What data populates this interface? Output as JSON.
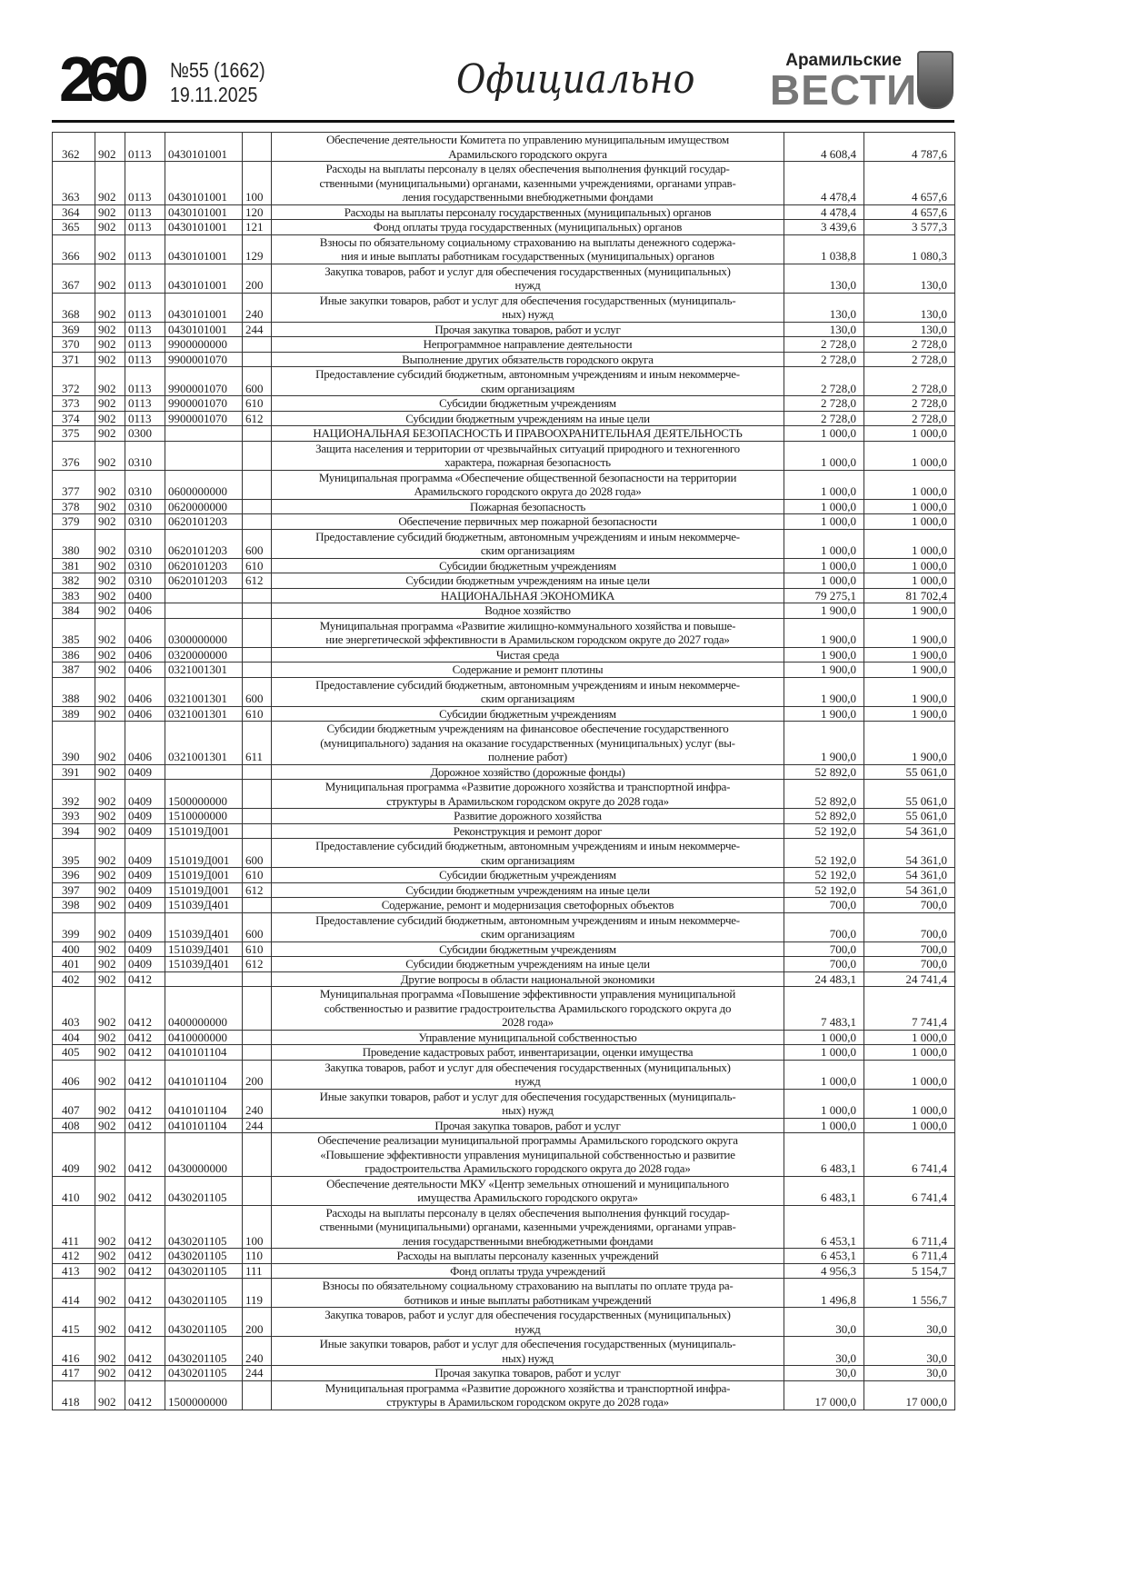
{
  "header": {
    "logo": "260",
    "issue": "№55 (1662)",
    "date": "19.11.2025",
    "section": "Официально",
    "brand_small": "Арамильские",
    "brand_big": "ВЕСТИ"
  },
  "rows": [
    [
      "362",
      "902",
      "0113",
      "0430101001",
      "",
      "Обеспечение деятельности Комитета по управлению муниципальным имуществом\nАрамильского городского округа",
      "4 608,4",
      "4 787,6"
    ],
    [
      "363",
      "902",
      "0113",
      "0430101001",
      "100",
      "Расходы на выплаты персоналу в целях обеспечения выполнения функций государ-\nственными (муниципальными) органами, казенными учреждениями, органами управ-\nления государственными внебюджетными фондами",
      "4 478,4",
      "4 657,6"
    ],
    [
      "364",
      "902",
      "0113",
      "0430101001",
      "120",
      "Расходы на выплаты персоналу государственных (муниципальных) органов",
      "4 478,4",
      "4 657,6"
    ],
    [
      "365",
      "902",
      "0113",
      "0430101001",
      "121",
      "Фонд оплаты труда государственных (муниципальных) органов",
      "3 439,6",
      "3 577,3"
    ],
    [
      "366",
      "902",
      "0113",
      "0430101001",
      "129",
      "Взносы по обязательному социальному страхованию на выплаты денежного содержа-\nния и иные выплаты работникам государственных (муниципальных) органов",
      "1 038,8",
      "1 080,3"
    ],
    [
      "367",
      "902",
      "0113",
      "0430101001",
      "200",
      "Закупка товаров, работ и услуг для обеспечения государственных (муниципальных)\nнужд",
      "130,0",
      "130,0"
    ],
    [
      "368",
      "902",
      "0113",
      "0430101001",
      "240",
      "Иные закупки товаров, работ и услуг для обеспечения государственных (муниципаль-\nных) нужд",
      "130,0",
      "130,0"
    ],
    [
      "369",
      "902",
      "0113",
      "0430101001",
      "244",
      "Прочая закупка товаров, работ и услуг",
      "130,0",
      "130,0"
    ],
    [
      "370",
      "902",
      "0113",
      "9900000000",
      "",
      "Непрограммное направление деятельности",
      "2 728,0",
      "2 728,0"
    ],
    [
      "371",
      "902",
      "0113",
      "9900001070",
      "",
      "Выполнение других обязательств городского округа",
      "2 728,0",
      "2 728,0"
    ],
    [
      "372",
      "902",
      "0113",
      "9900001070",
      "600",
      "Предоставление субсидий бюджетным, автономным учреждениям и иным некоммерче-\nским организациям",
      "2 728,0",
      "2 728,0"
    ],
    [
      "373",
      "902",
      "0113",
      "9900001070",
      "610",
      "Субсидии бюджетным учреждениям",
      "2 728,0",
      "2 728,0"
    ],
    [
      "374",
      "902",
      "0113",
      "9900001070",
      "612",
      "Субсидии бюджетным учреждениям на иные цели",
      "2 728,0",
      "2 728,0"
    ],
    [
      "375",
      "902",
      "0300",
      "",
      "",
      "НАЦИОНАЛЬНАЯ БЕЗОПАСНОСТЬ И ПРАВООХРАНИТЕЛЬНАЯ ДЕЯТЕЛЬНОСТЬ",
      "1 000,0",
      "1 000,0"
    ],
    [
      "376",
      "902",
      "0310",
      "",
      "",
      "Защита населения и территории от чрезвычайных ситуаций природного и техногенного\nхарактера, пожарная безопасность",
      "1 000,0",
      "1 000,0"
    ],
    [
      "377",
      "902",
      "0310",
      "0600000000",
      "",
      "Муниципальная программа «Обеспечение общественной безопасности на территории\nАрамильского городского округа до 2028 года»",
      "1 000,0",
      "1 000,0"
    ],
    [
      "378",
      "902",
      "0310",
      "0620000000",
      "",
      "Пожарная безопасность",
      "1 000,0",
      "1 000,0"
    ],
    [
      "379",
      "902",
      "0310",
      "0620101203",
      "",
      "Обеспечение первичных мер пожарной безопасности",
      "1 000,0",
      "1 000,0"
    ],
    [
      "380",
      "902",
      "0310",
      "0620101203",
      "600",
      "Предоставление субсидий бюджетным, автономным учреждениям и иным некоммерче-\nским организациям",
      "1 000,0",
      "1 000,0"
    ],
    [
      "381",
      "902",
      "0310",
      "0620101203",
      "610",
      "Субсидии бюджетным учреждениям",
      "1 000,0",
      "1 000,0"
    ],
    [
      "382",
      "902",
      "0310",
      "0620101203",
      "612",
      "Субсидии бюджетным учреждениям на иные цели",
      "1 000,0",
      "1 000,0"
    ],
    [
      "383",
      "902",
      "0400",
      "",
      "",
      "НАЦИОНАЛЬНАЯ ЭКОНОМИКА",
      "79 275,1",
      "81 702,4"
    ],
    [
      "384",
      "902",
      "0406",
      "",
      "",
      "Водное хозяйство",
      "1 900,0",
      "1 900,0"
    ],
    [
      "385",
      "902",
      "0406",
      "0300000000",
      "",
      "Муниципальная программа «Развитие жилищно-коммунального хозяйства и повыше-\nние энергетической эффективности в Арамильском городском округе до 2027 года»",
      "1 900,0",
      "1 900,0"
    ],
    [
      "386",
      "902",
      "0406",
      "0320000000",
      "",
      "Чистая среда",
      "1 900,0",
      "1 900,0"
    ],
    [
      "387",
      "902",
      "0406",
      "0321001301",
      "",
      "Содержание и ремонт плотины",
      "1 900,0",
      "1 900,0"
    ],
    [
      "388",
      "902",
      "0406",
      "0321001301",
      "600",
      "Предоставление субсидий бюджетным, автономным учреждениям и иным некоммерче-\nским организациям",
      "1 900,0",
      "1 900,0"
    ],
    [
      "389",
      "902",
      "0406",
      "0321001301",
      "610",
      "Субсидии бюджетным учреждениям",
      "1 900,0",
      "1 900,0"
    ],
    [
      "390",
      "902",
      "0406",
      "0321001301",
      "611",
      "Субсидии бюджетным учреждениям на финансовое обеспечение государственного\n(муниципального) задания на оказание государственных (муниципальных) услуг (вы-\nполнение работ)",
      "1 900,0",
      "1 900,0"
    ],
    [
      "391",
      "902",
      "0409",
      "",
      "",
      "Дорожное хозяйство (дорожные фонды)",
      "52 892,0",
      "55 061,0"
    ],
    [
      "392",
      "902",
      "0409",
      "1500000000",
      "",
      "Муниципальная программа «Развитие дорожного хозяйства и транспортной инфра-\nструктуры в Арамильском городском округе до 2028 года»",
      "52 892,0",
      "55 061,0"
    ],
    [
      "393",
      "902",
      "0409",
      "1510000000",
      "",
      "Развитие дорожного хозяйства",
      "52 892,0",
      "55 061,0"
    ],
    [
      "394",
      "902",
      "0409",
      "151019Д001",
      "",
      "Реконструкция и ремонт дорог",
      "52 192,0",
      "54 361,0"
    ],
    [
      "395",
      "902",
      "0409",
      "151019Д001",
      "600",
      "Предоставление субсидий бюджетным, автономным учреждениям и иным некоммерче-\nским организациям",
      "52 192,0",
      "54 361,0"
    ],
    [
      "396",
      "902",
      "0409",
      "151019Д001",
      "610",
      "Субсидии бюджетным учреждениям",
      "52 192,0",
      "54 361,0"
    ],
    [
      "397",
      "902",
      "0409",
      "151019Д001",
      "612",
      "Субсидии бюджетным учреждениям на иные цели",
      "52 192,0",
      "54 361,0"
    ],
    [
      "398",
      "902",
      "0409",
      "151039Д401",
      "",
      "Содержание, ремонт и модернизация светофорных объектов",
      "700,0",
      "700,0"
    ],
    [
      "399",
      "902",
      "0409",
      "151039Д401",
      "600",
      "Предоставление субсидий бюджетным, автономным учреждениям и иным некоммерче-\nским организациям",
      "700,0",
      "700,0"
    ],
    [
      "400",
      "902",
      "0409",
      "151039Д401",
      "610",
      "Субсидии бюджетным учреждениям",
      "700,0",
      "700,0"
    ],
    [
      "401",
      "902",
      "0409",
      "151039Д401",
      "612",
      "Субсидии бюджетным учреждениям на иные цели",
      "700,0",
      "700,0"
    ],
    [
      "402",
      "902",
      "0412",
      "",
      "",
      "Другие вопросы в области национальной экономики",
      "24 483,1",
      "24 741,4"
    ],
    [
      "403",
      "902",
      "0412",
      "0400000000",
      "",
      "Муниципальная программа «Повышение эффективности управления муниципальной\nсобственностью и развитие градостроительства Арамильского городского округа до\n2028 года»",
      "7 483,1",
      "7 741,4"
    ],
    [
      "404",
      "902",
      "0412",
      "0410000000",
      "",
      "Управление муниципальной собственностью",
      "1 000,0",
      "1 000,0"
    ],
    [
      "405",
      "902",
      "0412",
      "0410101104",
      "",
      "Проведение кадастровых работ, инвентаризации, оценки имущества",
      "1 000,0",
      "1 000,0"
    ],
    [
      "406",
      "902",
      "0412",
      "0410101104",
      "200",
      "Закупка товаров, работ и услуг для обеспечения государственных (муниципальных)\nнужд",
      "1 000,0",
      "1 000,0"
    ],
    [
      "407",
      "902",
      "0412",
      "0410101104",
      "240",
      "Иные закупки товаров, работ и услуг для обеспечения государственных (муниципаль-\nных) нужд",
      "1 000,0",
      "1 000,0"
    ],
    [
      "408",
      "902",
      "0412",
      "0410101104",
      "244",
      "Прочая закупка товаров, работ и услуг",
      "1 000,0",
      "1 000,0"
    ],
    [
      "409",
      "902",
      "0412",
      "0430000000",
      "",
      "Обеспечение реализации муниципальной программы Арамильского городского округа\n«Повышение эффективности управления муниципальной собственностью и развитие\nградостроительства Арамильского городского округа до 2028 года»",
      "6 483,1",
      "6 741,4"
    ],
    [
      "410",
      "902",
      "0412",
      "0430201105",
      "",
      "Обеспечение деятельности МКУ «Центр земельных отношений и муниципального\nимущества Арамильского городского округа»",
      "6 483,1",
      "6 741,4"
    ],
    [
      "411",
      "902",
      "0412",
      "0430201105",
      "100",
      "Расходы на выплаты персоналу в целях обеспечения выполнения функций государ-\nственными (муниципальными) органами, казенными учреждениями, органами управ-\nления государственными внебюджетными фондами",
      "6 453,1",
      "6 711,4"
    ],
    [
      "412",
      "902",
      "0412",
      "0430201105",
      "110",
      "Расходы на выплаты персоналу казенных учреждений",
      "6 453,1",
      "6 711,4"
    ],
    [
      "413",
      "902",
      "0412",
      "0430201105",
      "111",
      "Фонд оплаты труда учреждений",
      "4 956,3",
      "5 154,7"
    ],
    [
      "414",
      "902",
      "0412",
      "0430201105",
      "119",
      "Взносы по обязательному социальному страхованию на выплаты по оплате труда ра-\nботников и иные выплаты работникам учреждений",
      "1 496,8",
      "1 556,7"
    ],
    [
      "415",
      "902",
      "0412",
      "0430201105",
      "200",
      "Закупка товаров, работ и услуг для обеспечения государственных (муниципальных)\nнужд",
      "30,0",
      "30,0"
    ],
    [
      "416",
      "902",
      "0412",
      "0430201105",
      "240",
      "Иные закупки товаров, работ и услуг для обеспечения государственных (муниципаль-\nных) нужд",
      "30,0",
      "30,0"
    ],
    [
      "417",
      "902",
      "0412",
      "0430201105",
      "244",
      "Прочая закупка товаров, работ и услуг",
      "30,0",
      "30,0"
    ],
    [
      "418",
      "902",
      "0412",
      "1500000000",
      "",
      "Муниципальная программа «Развитие дорожного хозяйства и транспортной инфра-\nструктуры в Арамильском городском округе до 2028 года»",
      "17 000,0",
      "17 000,0"
    ]
  ]
}
